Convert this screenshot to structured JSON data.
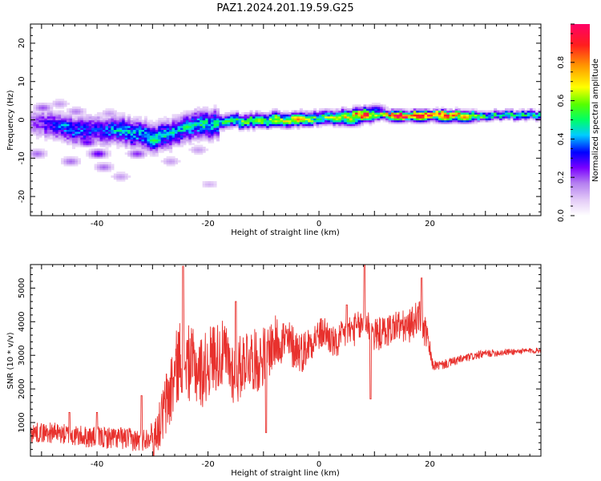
{
  "title": "PAZ1.2024.201.19.59.G25",
  "colors": {
    "snr_line": "#e8312d",
    "background": "#ffffff",
    "colormap": [
      "#ffffff",
      "#e4cdf7",
      "#b47ef0",
      "#7a00ff",
      "#0000ff",
      "#00ccff",
      "#00ff66",
      "#55ff00",
      "#ffff00",
      "#ff9900",
      "#ff1e1e",
      "#ff0066"
    ]
  },
  "chart_data": [
    {
      "type": "heatmap",
      "title": "PAZ1.2024.201.19.59.G25",
      "xlabel": "Height of straight line (km)",
      "ylabel": "Frequency (Hz)",
      "xlim": [
        -52,
        40
      ],
      "ylim": [
        -25,
        25
      ],
      "xticks": [
        -40,
        -20,
        0,
        20
      ],
      "yticks": [
        -20,
        -10,
        0,
        10,
        20
      ],
      "colorbar": {
        "label": "Normalized spectral amplitude",
        "range": [
          0,
          1
        ],
        "ticks": [
          0.0,
          0.2,
          0.4,
          0.6,
          0.8
        ]
      },
      "ridge": {
        "x": [
          -52,
          -48,
          -44,
          -40,
          -36,
          -32,
          -30,
          -27,
          -24,
          -21,
          -18,
          -15,
          -12,
          -8,
          -4,
          0,
          4,
          8,
          10,
          14,
          18,
          22,
          26,
          30,
          34,
          40
        ],
        "y": [
          -1,
          -1.5,
          -3,
          -3,
          -3,
          -4,
          -5,
          -4,
          -2,
          -1.5,
          -1,
          -0.5,
          -0.5,
          0,
          0,
          0.5,
          0.5,
          1,
          1,
          1,
          1,
          1,
          1,
          1,
          1,
          1
        ],
        "amplitude": [
          0.2,
          0.35,
          0.4,
          0.35,
          0.45,
          0.45,
          0.5,
          0.45,
          0.45,
          0.5,
          0.5,
          0.55,
          0.6,
          0.6,
          0.7,
          0.55,
          0.7,
          0.85,
          0.6,
          0.95,
          0.9,
          0.9,
          0.75,
          0.55,
          0.55,
          0.55
        ]
      },
      "blobs": [
        {
          "x": 18,
          "y": 0.8,
          "a": 1.0
        },
        {
          "x": 14,
          "y": 0.8,
          "a": 0.95
        },
        {
          "x": 8,
          "y": 0.9,
          "a": 0.9
        },
        {
          "x": 26,
          "y": 0.6,
          "a": 0.85
        },
        {
          "x": 22.5,
          "y": 0.6,
          "a": 0.85
        },
        {
          "x": -4,
          "y": 0.1,
          "a": 0.85
        },
        {
          "x": -11,
          "y": -0.3,
          "a": 0.7
        },
        {
          "x": -8,
          "y": -0.5,
          "a": 0.7
        },
        {
          "x": 3,
          "y": 0.2,
          "a": 0.7
        },
        {
          "x": 5.5,
          "y": -0.3,
          "a": 0.65
        },
        {
          "x": -24,
          "y": -2,
          "a": 0.6
        },
        {
          "x": -30,
          "y": -5.5,
          "a": 0.6
        },
        {
          "x": -46,
          "y": -1.5,
          "a": 0.5
        },
        {
          "x": -36,
          "y": -3,
          "a": 0.5
        },
        {
          "x": -40,
          "y": -9,
          "a": 0.3
        },
        {
          "x": -42,
          "y": -6,
          "a": 0.3
        },
        {
          "x": -33,
          "y": -9,
          "a": 0.25
        },
        {
          "x": -45,
          "y": -11,
          "a": 0.2
        },
        {
          "x": -39,
          "y": -12.5,
          "a": 0.2
        },
        {
          "x": -50,
          "y": 3,
          "a": 0.22
        },
        {
          "x": -51,
          "y": -9,
          "a": 0.2
        },
        {
          "x": -47,
          "y": 4,
          "a": 0.15
        },
        {
          "x": -36,
          "y": -15,
          "a": 0.15
        },
        {
          "x": -27,
          "y": -11,
          "a": 0.15
        },
        {
          "x": -20,
          "y": -17,
          "a": 0.12
        },
        {
          "x": -22,
          "y": -8,
          "a": 0.15
        },
        {
          "x": -44,
          "y": 2,
          "a": 0.18
        },
        {
          "x": -38,
          "y": 1.5,
          "a": 0.15
        },
        {
          "x": 10,
          "y": 2.5,
          "a": 0.4
        }
      ]
    },
    {
      "type": "line",
      "xlabel": "Height of straight line (km)",
      "ylabel": "SNR (10 * v/v)",
      "xlim": [
        -52,
        40
      ],
      "ylim": [
        0,
        5700
      ],
      "xticks": [
        -40,
        -20,
        0,
        20
      ],
      "yticks": [
        1000,
        2000,
        3000,
        4000,
        5000
      ],
      "envelope": {
        "x": [
          -52,
          -48,
          -44,
          -40,
          -36,
          -32,
          -29,
          -27,
          -25,
          -23,
          -21,
          -19,
          -17,
          -15,
          -13,
          -11,
          -9,
          -7,
          -5,
          -3,
          -1,
          1,
          3,
          5,
          7,
          8.5,
          10,
          12,
          14,
          16,
          18,
          19.5,
          20.5,
          22,
          26,
          30,
          34,
          40
        ],
        "y": [
          700,
          700,
          600,
          550,
          550,
          450,
          800,
          1800,
          3000,
          2700,
          2500,
          3000,
          3000,
          2400,
          3000,
          2800,
          3200,
          3500,
          3300,
          3100,
          3500,
          3700,
          3300,
          3700,
          3800,
          4000,
          3600,
          3700,
          3900,
          3800,
          4200,
          3500,
          2700,
          2700,
          2900,
          3050,
          3100,
          3150
        ]
      },
      "noise_amplitude": {
        "x": [
          -52,
          -30,
          -27,
          -10,
          0,
          19.5,
          20.5,
          40
        ],
        "y": [
          300,
          350,
          1200,
          900,
          500,
          500,
          150,
          80
        ]
      },
      "spikes": [
        {
          "x": -24.5,
          "y": 5650
        },
        {
          "x": 8.2,
          "y": 5700
        },
        {
          "x": 18.5,
          "y": 5300
        },
        {
          "x": -29.8,
          "y": 20
        },
        {
          "x": -9.5,
          "y": 700
        },
        {
          "x": 9.3,
          "y": 1700
        },
        {
          "x": -45,
          "y": 1300
        },
        {
          "x": -40,
          "y": 1300
        },
        {
          "x": -32,
          "y": 1800
        },
        {
          "x": -15,
          "y": 4600
        },
        {
          "x": 5,
          "y": 4500
        }
      ]
    }
  ]
}
